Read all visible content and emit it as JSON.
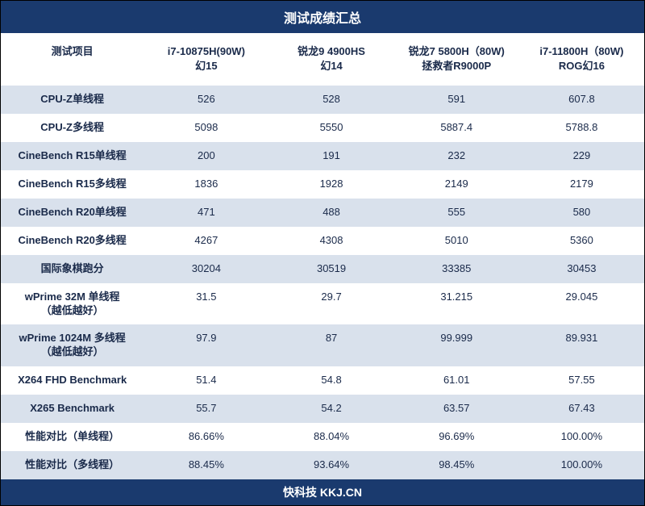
{
  "title": "测试成绩汇总",
  "footer": "快科技 KKJ.CN",
  "colors": {
    "header_bg": "#1a3a6e",
    "header_text": "#ffffff",
    "row_even_bg": "#d9e1ec",
    "row_odd_bg": "#ffffff",
    "cell_text": "#1a2a4a"
  },
  "columns": [
    {
      "line1": "测试项目",
      "line2": ""
    },
    {
      "line1": "i7-10875H(90W)",
      "line2": "幻15"
    },
    {
      "line1": "锐龙9 4900HS",
      "line2": "幻14"
    },
    {
      "line1": "锐龙7 5800H（80W)",
      "line2": "拯救者R9000P"
    },
    {
      "line1": "i7-11800H（80W)",
      "line2": "ROG幻16"
    }
  ],
  "rows": [
    {
      "label": "CPU-Z单线程",
      "values": [
        "526",
        "528",
        "591",
        "607.8"
      ]
    },
    {
      "label": "CPU-Z多线程",
      "values": [
        "5098",
        "5550",
        "5887.4",
        "5788.8"
      ]
    },
    {
      "label": "CineBench R15单线程",
      "values": [
        "200",
        "191",
        "232",
        "229"
      ]
    },
    {
      "label": "CineBench R15多线程",
      "values": [
        "1836",
        "1928",
        "2149",
        "2179"
      ]
    },
    {
      "label": "CineBench R20单线程",
      "values": [
        "471",
        "488",
        "555",
        "580"
      ]
    },
    {
      "label": "CineBench R20多线程",
      "values": [
        "4267",
        "4308",
        "5010",
        "5360"
      ]
    },
    {
      "label": "国际象棋跑分",
      "values": [
        "30204",
        "30519",
        "33385",
        "30453"
      ]
    },
    {
      "label": "wPrime 32M 单线程\n（越低越好）",
      "values": [
        "31.5",
        "29.7",
        "31.215",
        "29.045"
      ]
    },
    {
      "label": "wPrime 1024M 多线程\n（越低越好）",
      "values": [
        "97.9",
        "87",
        "99.999",
        "89.931"
      ]
    },
    {
      "label": "X264 FHD Benchmark",
      "values": [
        "51.4",
        "54.8",
        "61.01",
        "57.55"
      ]
    },
    {
      "label": "X265 Benchmark",
      "values": [
        "55.7",
        "54.2",
        "63.57",
        "67.43"
      ]
    },
    {
      "label": "性能对比（单线程）",
      "values": [
        "86.66%",
        "88.04%",
        "96.69%",
        "100.00%"
      ]
    },
    {
      "label": "性能对比（多线程）",
      "values": [
        "88.45%",
        "93.64%",
        "98.45%",
        "100.00%"
      ]
    }
  ]
}
